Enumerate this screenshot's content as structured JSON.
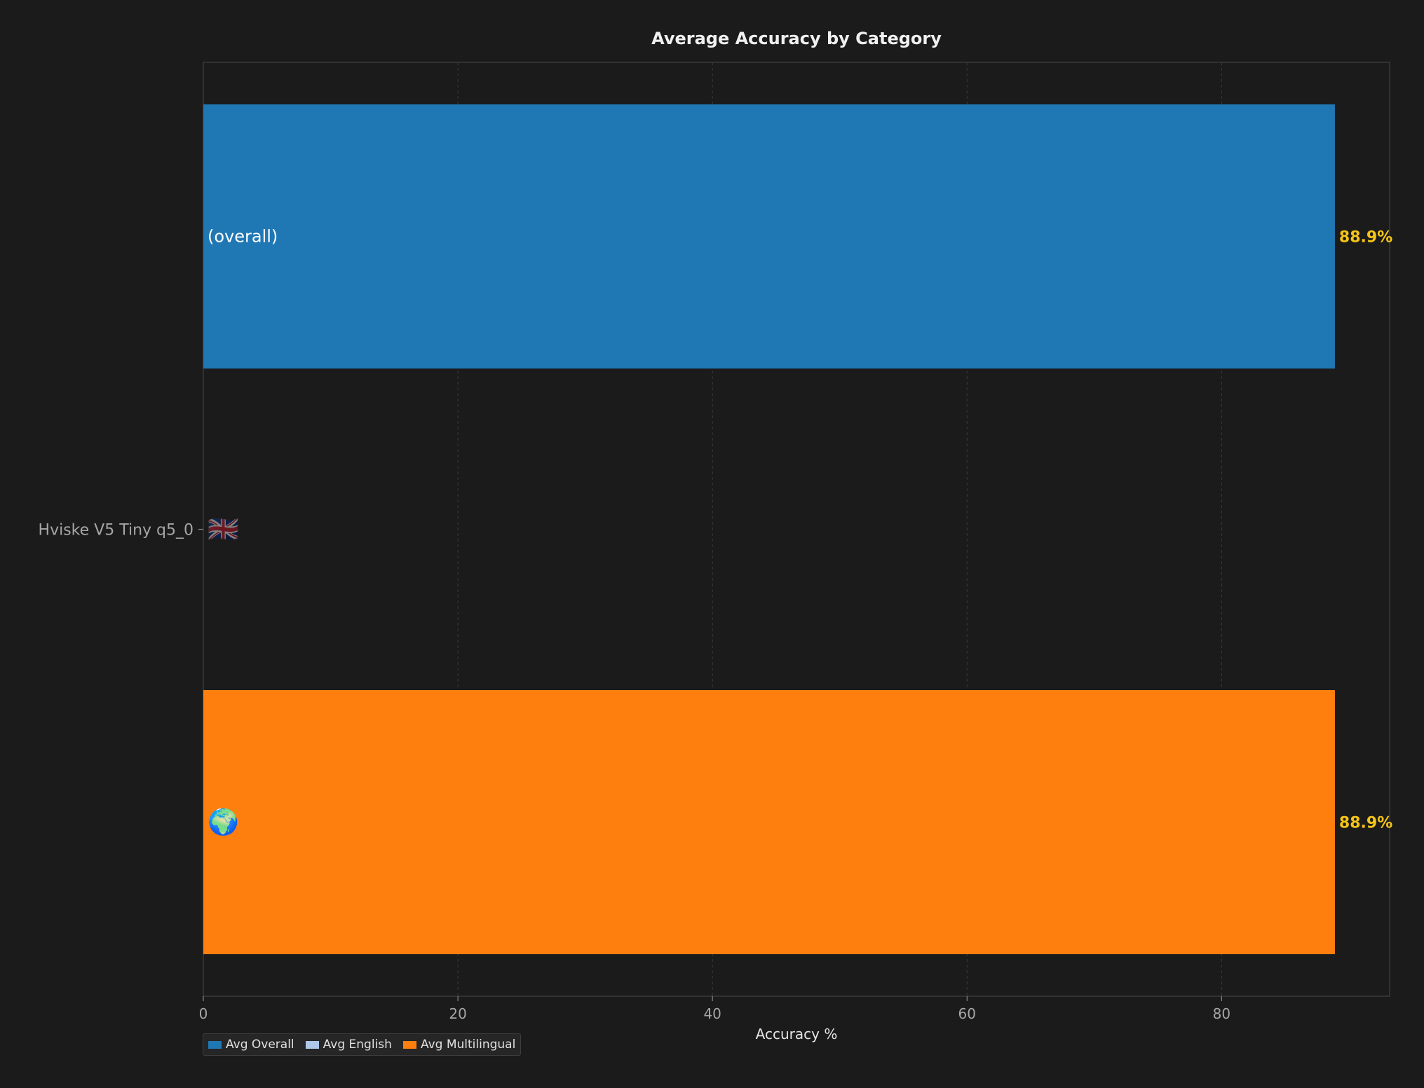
{
  "chart_data": {
    "type": "bar",
    "orientation": "horizontal",
    "title": "Average Accuracy by Category",
    "xlabel": "Accuracy %",
    "ylabel": "",
    "xlim": [
      0,
      93.2
    ],
    "xticks": [
      0,
      20,
      40,
      60,
      80
    ],
    "categories": [
      "Hviske V5 Tiny q5_0"
    ],
    "series": [
      {
        "name": "Avg Overall",
        "values": [
          88.9
        ],
        "color": "#1f77b4",
        "bar_label": "(overall)",
        "value_label": "88.9%"
      },
      {
        "name": "Avg English",
        "values": [
          0
        ],
        "color": "#aec7e8",
        "bar_label": "🇬🇧",
        "value_label": ""
      },
      {
        "name": "Avg Multilingual",
        "values": [
          88.9
        ],
        "color": "#ff7f0e",
        "bar_label": "🌍",
        "value_label": "88.9%"
      }
    ],
    "grid": "vertical-dashed",
    "legend_position": "bottom-left",
    "value_label_color": "#f5c518"
  }
}
